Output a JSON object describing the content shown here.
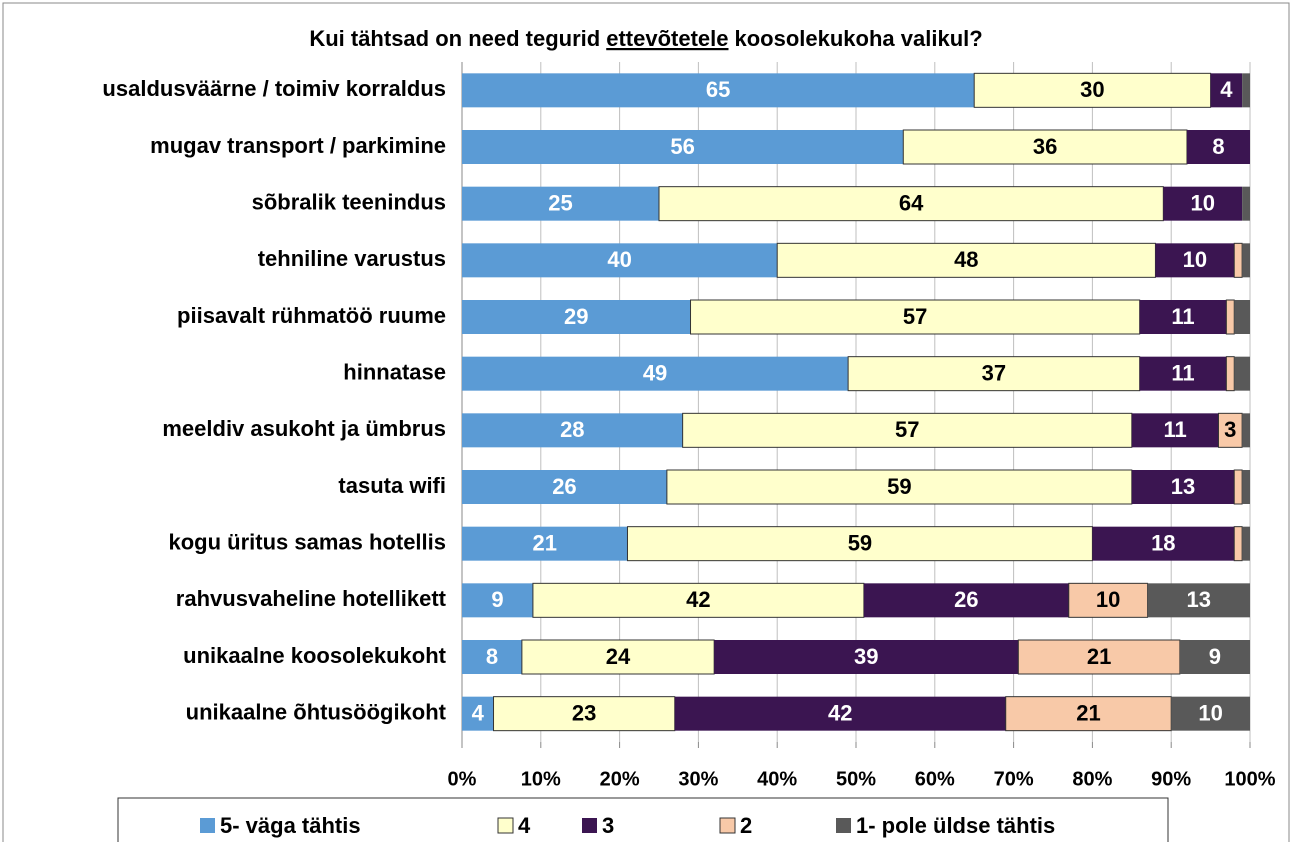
{
  "chart_data": {
    "type": "stacked_barh",
    "title": [
      "Kui tähtsad on need tegurid",
      "ettevõtetele",
      "koosolekukoha valikul?"
    ],
    "title_underlined": 1,
    "categories": [
      "usaldusväärne / toimiv korraldus",
      "mugav transport / parkimine",
      "sõbralik teenindus",
      "tehniline varustus",
      "piisavalt rühmatöö ruume",
      "hinnatase",
      "meeldiv asukoht ja ümbrus",
      "tasuta wifi",
      "kogu üritus samas hotellis",
      "rahvusvaheline hotellikett",
      "unikaalne koosolekukoht",
      "unikaalne õhtusöögikoht"
    ],
    "series": [
      {
        "name": "5- väga tähtis",
        "color": "#5b9bd5",
        "values": [
          65,
          56,
          25,
          40,
          29,
          49,
          28,
          26,
          21,
          9,
          7.6,
          4
        ],
        "value_labels": [
          "65",
          "56",
          "25",
          "40",
          "29",
          "49",
          "28",
          "26",
          "21",
          "9",
          "8",
          "4"
        ]
      },
      {
        "name": "4",
        "color": "#ffffcc",
        "values": [
          30,
          36,
          64,
          48,
          57,
          37,
          57,
          59,
          59,
          42,
          24.4,
          23
        ],
        "value_labels": [
          "30",
          "36",
          "64",
          "48",
          "57",
          "37",
          "57",
          "59",
          "59",
          "42",
          "24",
          "23"
        ]
      },
      {
        "name": "3",
        "color": "#3b1551",
        "values": [
          4,
          8,
          10,
          10,
          11,
          11,
          11,
          13,
          18,
          26,
          38.6,
          42
        ],
        "value_labels": [
          "4",
          "8",
          "10",
          "10",
          "11",
          "11",
          "11",
          "13",
          "18",
          "26",
          "39",
          "42"
        ]
      },
      {
        "name": "2",
        "color": "#f8c9a8",
        "values": [
          0,
          0,
          0,
          1,
          1,
          1,
          3,
          1,
          1,
          10,
          20.5,
          21
        ],
        "value_labels": [
          null,
          null,
          null,
          null,
          null,
          null,
          "3",
          null,
          null,
          "10",
          "21",
          "21"
        ]
      },
      {
        "name": "1- pole üldse tähtis",
        "color": "#595959",
        "values": [
          1,
          0,
          1,
          1,
          2,
          2,
          1,
          1,
          1,
          13,
          8.9,
          10
        ],
        "value_labels": [
          null,
          null,
          null,
          null,
          null,
          null,
          null,
          null,
          null,
          "13",
          "9",
          "10"
        ]
      }
    ],
    "xlim": [
      0,
      100
    ],
    "xticks": [
      {
        "value": 0,
        "label": "0%"
      },
      {
        "value": 10,
        "label": "10%"
      },
      {
        "value": 20,
        "label": "20%"
      },
      {
        "value": 30,
        "label": "30%"
      },
      {
        "value": 40,
        "label": "40%"
      },
      {
        "value": 50,
        "label": "50%"
      },
      {
        "value": 60,
        "label": "60%"
      },
      {
        "value": 70,
        "label": "70%"
      },
      {
        "value": 80,
        "label": "80%"
      },
      {
        "value": 90,
        "label": "90%"
      },
      {
        "value": 100,
        "label": "100%"
      }
    ],
    "grid": true,
    "legend": "bottom"
  }
}
